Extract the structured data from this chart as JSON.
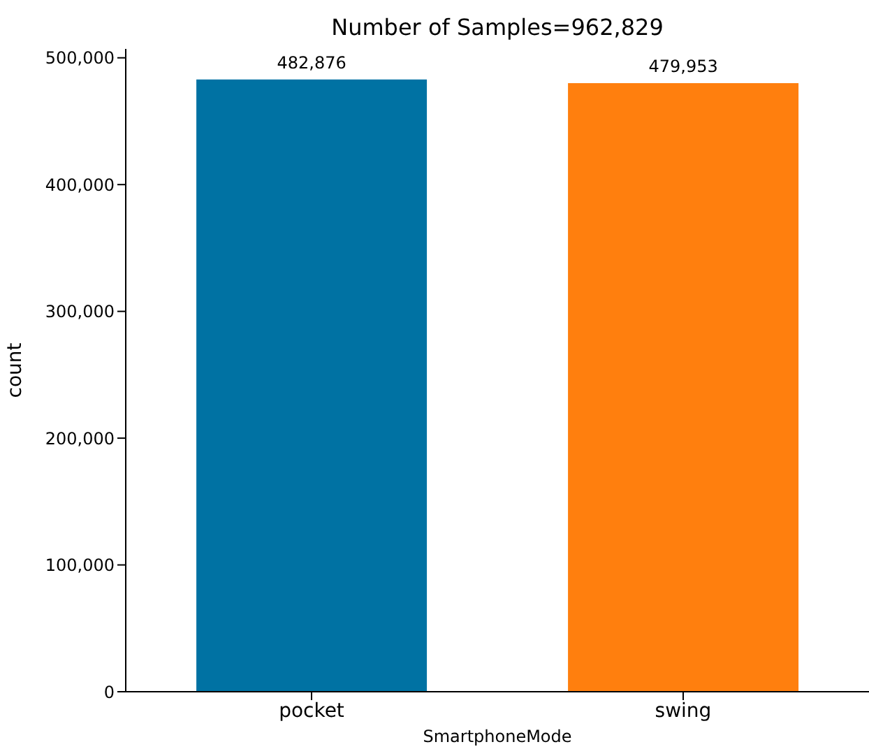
{
  "chart_data": {
    "type": "bar",
    "title": "Number of Samples=962,829",
    "xlabel": "SmartphoneMode",
    "ylabel": "count",
    "categories": [
      "pocket",
      "swing"
    ],
    "values": [
      482876,
      479953
    ],
    "colors": [
      "#0072a3",
      "#ff7f0e"
    ],
    "value_labels": [
      "482,876",
      "479,953"
    ],
    "ylim": [
      0,
      507020
    ],
    "yticks": [
      0,
      {
        "value": 100000,
        "label": "100,000"
      },
      {
        "value": 200000,
        "label": "200,000"
      },
      {
        "value": 300000,
        "label": "300,000"
      },
      {
        "value": 400000,
        "label": "400,000"
      },
      {
        "value": 500000,
        "label": "500,000"
      }
    ],
    "grid": false
  }
}
